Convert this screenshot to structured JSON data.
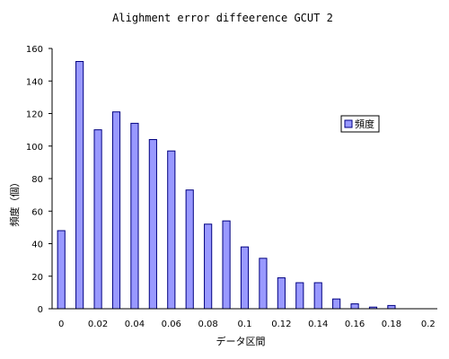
{
  "chart_data": {
    "type": "bar",
    "title": "Alighment error diffeerence GCUT 2",
    "xlabel": "データ区間",
    "ylabel": "頻度（個）",
    "legend": {
      "label": "頻度",
      "placement": "right"
    },
    "ylim": [
      0,
      160
    ],
    "yticks": [
      0,
      20,
      40,
      60,
      80,
      100,
      120,
      140,
      160
    ],
    "x_tick_labels": [
      "0",
      "0.02",
      "0.04",
      "0.06",
      "0.08",
      "0.1",
      "0.12",
      "0.14",
      "0.16",
      "0.18",
      "0.2"
    ],
    "categories": [
      "0",
      "0.01",
      "0.02",
      "0.03",
      "0.04",
      "0.05",
      "0.06",
      "0.07",
      "0.08",
      "0.09",
      "0.1",
      "0.11",
      "0.12",
      "0.13",
      "0.14",
      "0.15",
      "0.16",
      "0.17",
      "0.18",
      "0.19",
      "0.2"
    ],
    "values": [
      48,
      152,
      110,
      121,
      114,
      104,
      97,
      73,
      52,
      54,
      38,
      31,
      19,
      16,
      16,
      6,
      3,
      1,
      2,
      0,
      0
    ],
    "colors": {
      "bar_fill": "#9999ff",
      "bar_stroke": "#000080",
      "axis": "#000000"
    },
    "grid": false
  }
}
